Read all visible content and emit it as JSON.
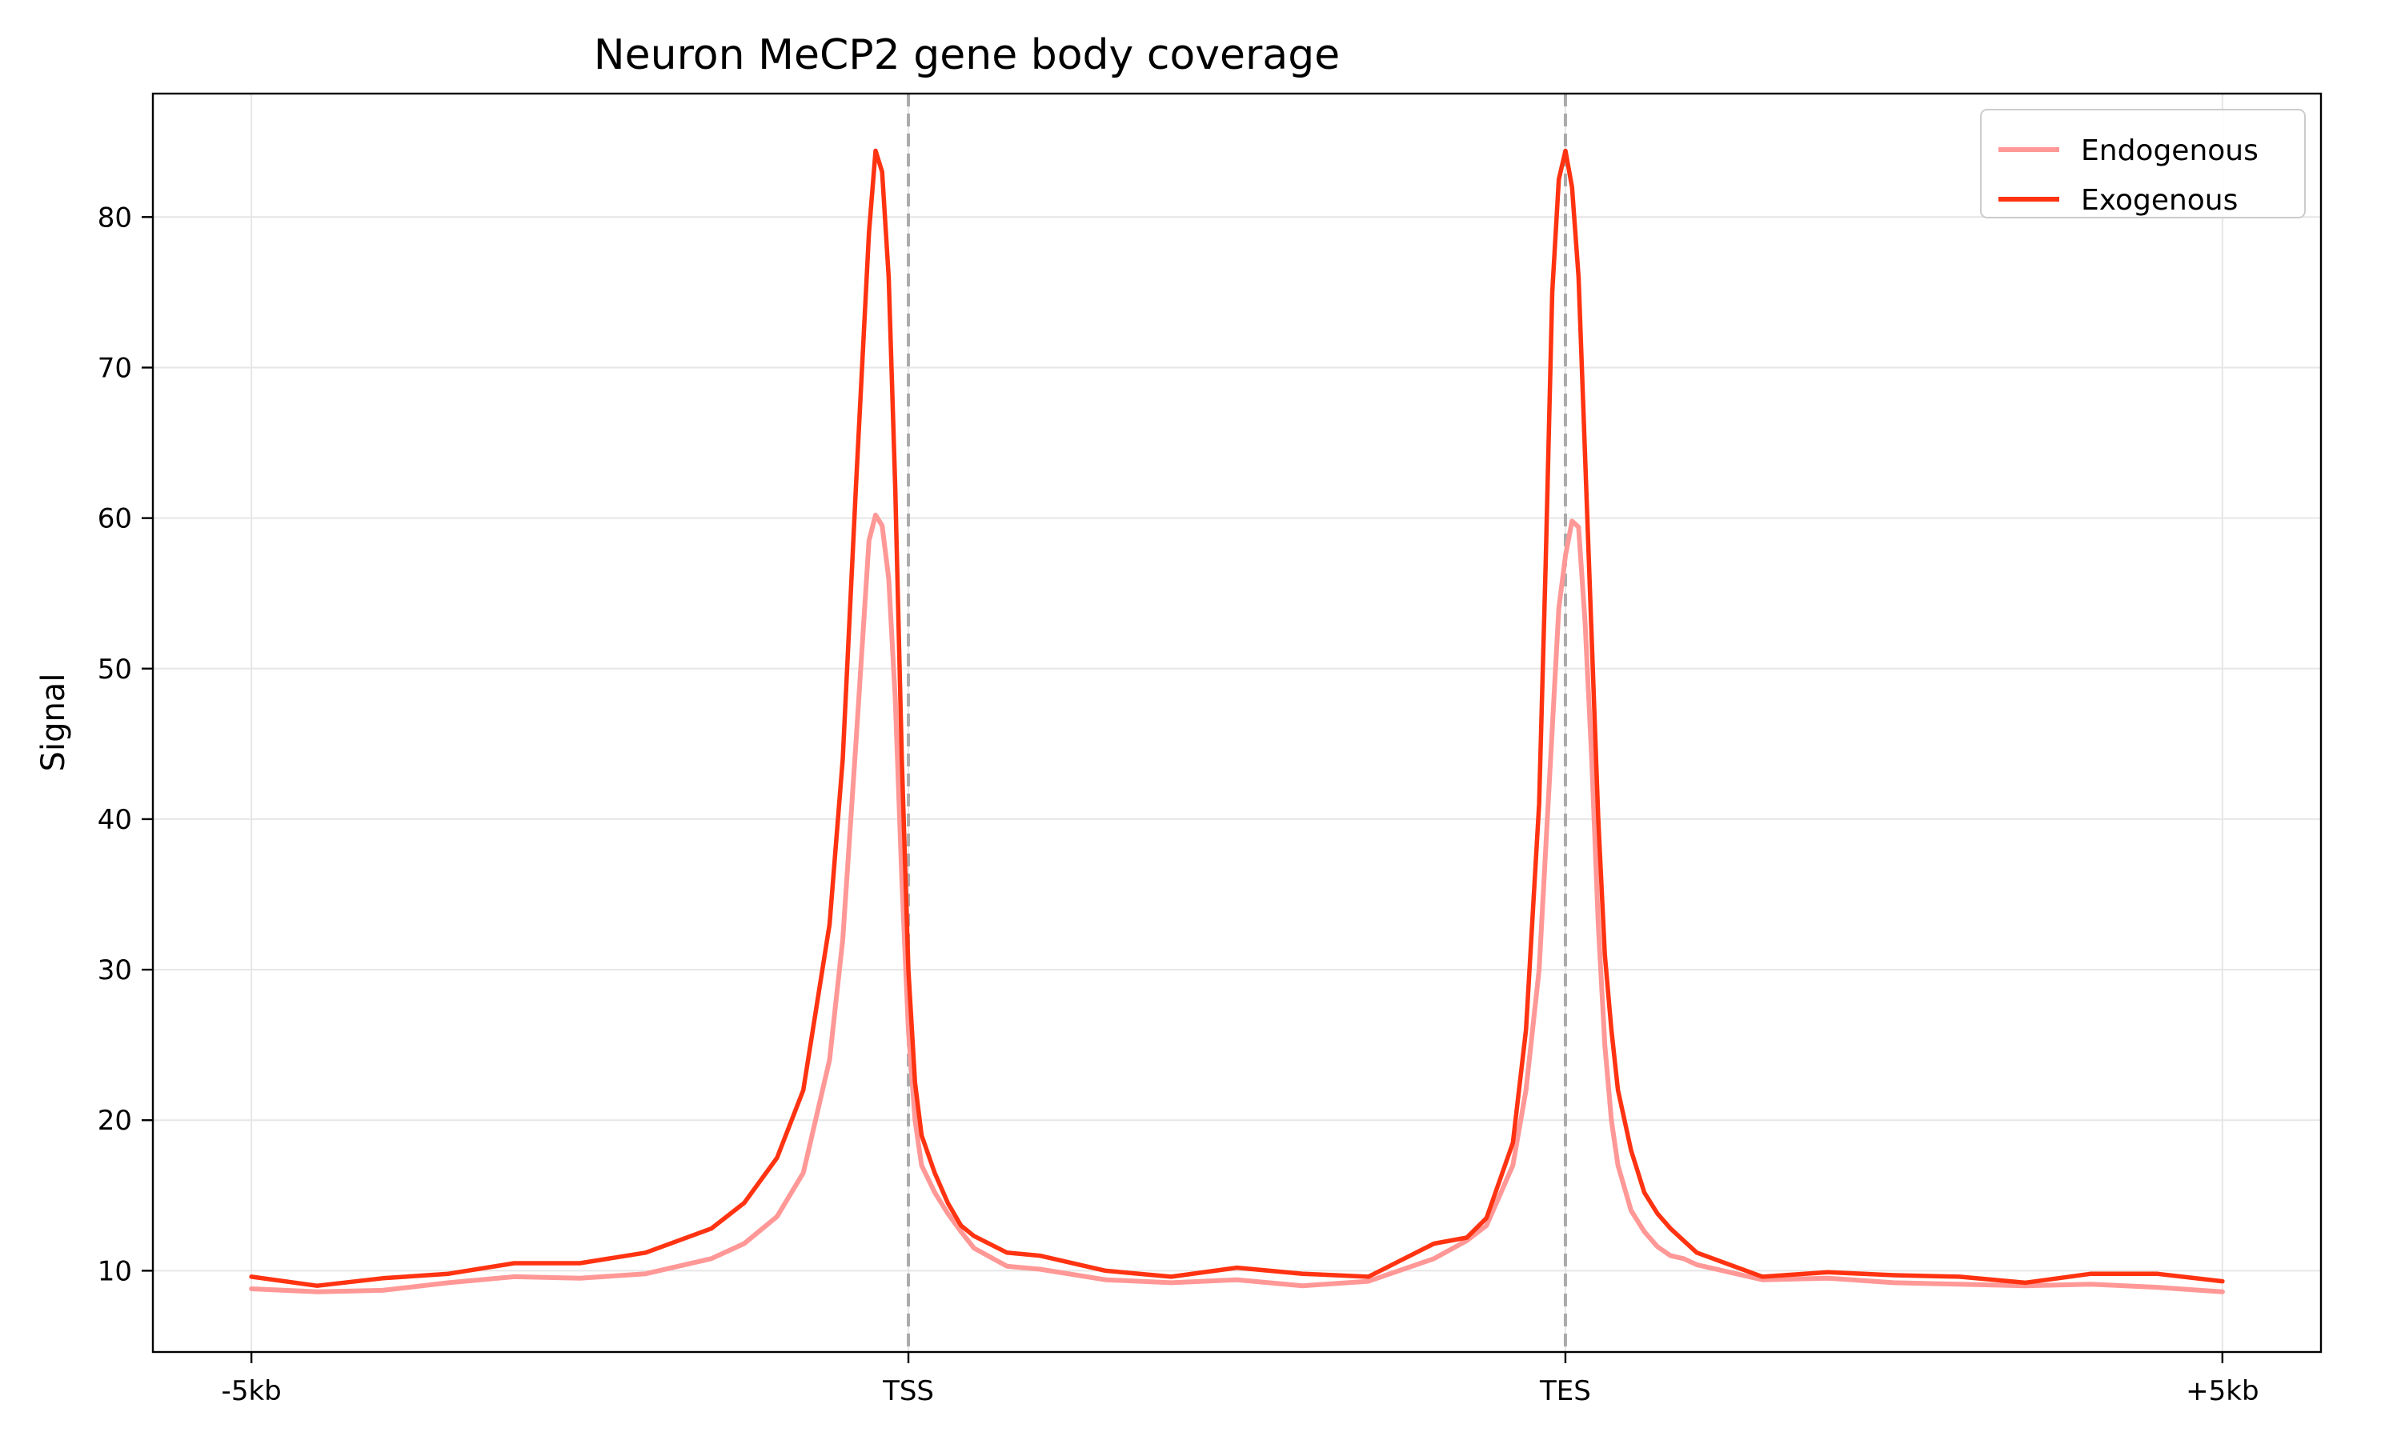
{
  "chart_data": {
    "type": "line",
    "title": "Neuron MeCP2 gene body coverage",
    "xlabel": "",
    "ylabel": "Signal",
    "xlim": [
      -15,
      315
    ],
    "ylim": [
      4.6,
      88.2
    ],
    "grid": true,
    "legend_position": "top-right",
    "x_ticks": [
      {
        "value": 0,
        "label": "-5kb"
      },
      {
        "value": 100,
        "label": "TSS"
      },
      {
        "value": 200,
        "label": "TES"
      },
      {
        "value": 300,
        "label": "+5kb"
      }
    ],
    "y_ticks": [
      10,
      20,
      30,
      40,
      50,
      60,
      70,
      80
    ],
    "reference_lines": [
      {
        "x": 100,
        "style": "dashed",
        "color": "#aaaaaa"
      },
      {
        "x": 200,
        "style": "dashed",
        "color": "#aaaaaa"
      }
    ],
    "x": [
      0,
      10,
      20,
      30,
      40,
      50,
      60,
      70,
      75,
      80,
      84,
      88,
      90,
      92,
      94,
      95,
      96,
      97,
      98,
      99,
      100,
      101,
      102,
      104,
      106,
      108,
      110,
      115,
      120,
      130,
      140,
      150,
      160,
      170,
      180,
      185,
      188,
      192,
      194,
      196,
      197,
      198,
      199,
      200,
      201,
      202,
      203,
      204,
      205,
      206,
      207,
      208,
      210,
      212,
      214,
      216,
      218,
      220,
      230,
      240,
      250,
      260,
      270,
      280,
      290,
      300
    ],
    "series": [
      {
        "name": "Endogenous",
        "color": "#ff9896",
        "values": [
          8.8,
          8.6,
          8.7,
          9.2,
          9.6,
          9.5,
          9.8,
          10.8,
          11.8,
          13.6,
          16.5,
          24,
          32,
          45,
          58.5,
          60.2,
          59.5,
          56,
          48,
          36,
          26,
          20,
          17,
          15.2,
          13.8,
          12.6,
          11.5,
          10.3,
          10.1,
          9.4,
          9.2,
          9.4,
          9.0,
          9.3,
          10.8,
          12.0,
          13.0,
          17,
          22,
          30,
          38,
          46,
          54,
          57.5,
          59.8,
          59.4,
          53,
          44,
          33,
          25,
          20,
          17,
          14,
          12.6,
          11.6,
          11.0,
          10.8,
          10.4,
          9.4,
          9.5,
          9.2,
          9.1,
          9.0,
          9.1,
          8.9,
          8.6
        ]
      },
      {
        "name": "Exogenous",
        "color": "#ff3311",
        "values": [
          9.6,
          9.0,
          9.5,
          9.8,
          10.5,
          10.5,
          11.2,
          12.8,
          14.5,
          17.5,
          22,
          33,
          44,
          62,
          79,
          84.4,
          83,
          76,
          62,
          44,
          30,
          22.5,
          19,
          16.5,
          14.5,
          13,
          12.3,
          11.2,
          11.0,
          10.0,
          9.6,
          10.2,
          9.8,
          9.6,
          11.8,
          12.2,
          13.5,
          18.5,
          26,
          41,
          57,
          75,
          82.5,
          84.4,
          82,
          76,
          64,
          52,
          40,
          31,
          26,
          22,
          18,
          15.2,
          13.8,
          12.8,
          12.0,
          11.2,
          9.6,
          9.9,
          9.7,
          9.6,
          9.2,
          9.8,
          9.8,
          9.3
        ]
      }
    ]
  }
}
